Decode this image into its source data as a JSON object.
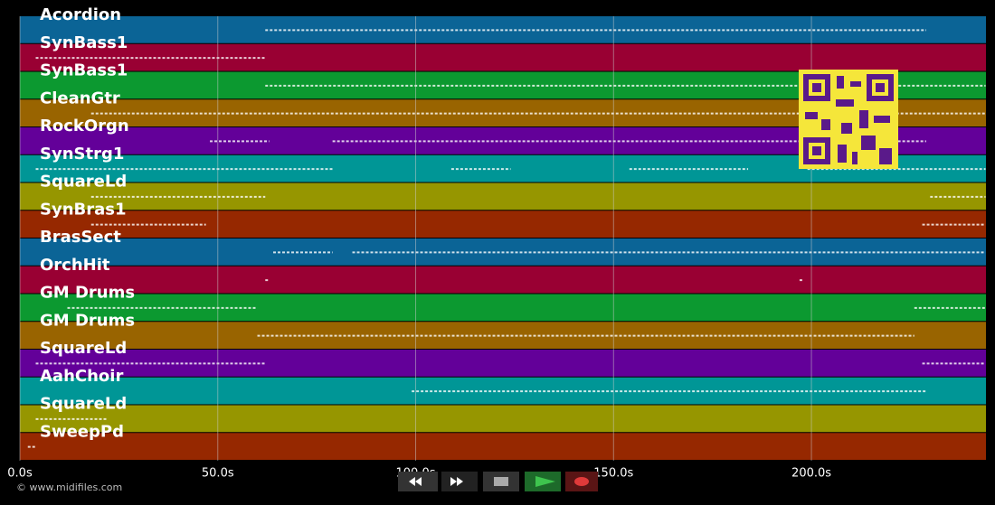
{
  "axis": {
    "xlim": [
      0,
      244.1
    ],
    "ticks": [
      {
        "value": 0,
        "label": "0.0s"
      },
      {
        "value": 50,
        "label": "50.0s"
      },
      {
        "value": 100,
        "label": "100.0s"
      },
      {
        "value": 150,
        "label": "150.0s"
      },
      {
        "value": 200,
        "label": "200.0s"
      }
    ]
  },
  "tracks": [
    {
      "name": "Acordion",
      "color": "#0b6496",
      "segments": [
        [
          62,
          229
        ]
      ]
    },
    {
      "name": "SynBass1",
      "color": "#990033",
      "segments": [
        [
          4,
          62
        ]
      ]
    },
    {
      "name": "SynBass1",
      "color": "#0c9930",
      "segments": [
        [
          62,
          244
        ]
      ]
    },
    {
      "name": "CleanGtr",
      "color": "#996400",
      "segments": [
        [
          18,
          244
        ]
      ]
    },
    {
      "name": "RockOrgn",
      "color": "#630099",
      "segments": [
        [
          48,
          63
        ],
        [
          79,
          229
        ]
      ]
    },
    {
      "name": "SynStrg1",
      "color": "#009696",
      "segments": [
        [
          4,
          79
        ],
        [
          109,
          124
        ],
        [
          154,
          184
        ],
        [
          199,
          244
        ]
      ]
    },
    {
      "name": "SquareLd",
      "color": "#969600",
      "segments": [
        [
          18,
          62
        ],
        [
          230,
          244
        ]
      ]
    },
    {
      "name": "SynBras1",
      "color": "#962800",
      "segments": [
        [
          18,
          47
        ],
        [
          228,
          244
        ]
      ]
    },
    {
      "name": "BrasSect",
      "color": "#0b6496",
      "segments": [
        [
          64,
          79
        ],
        [
          84,
          244
        ]
      ]
    },
    {
      "name": "OrchHit",
      "color": "#990033",
      "segments": [
        [
          62,
          63
        ],
        [
          197,
          198
        ]
      ]
    },
    {
      "name": "GM Drums",
      "color": "#0c9930",
      "segments": [
        [
          12,
          60
        ],
        [
          226,
          244
        ]
      ]
    },
    {
      "name": "GM Drums",
      "color": "#996400",
      "segments": [
        [
          60,
          226
        ]
      ]
    },
    {
      "name": "SquareLd",
      "color": "#630099",
      "segments": [
        [
          4,
          62
        ],
        [
          228,
          244
        ]
      ]
    },
    {
      "name": "AahChoir",
      "color": "#009696",
      "segments": [
        [
          99,
          229
        ]
      ]
    },
    {
      "name": "SquareLd",
      "color": "#969600",
      "segments": [
        [
          4,
          22
        ]
      ]
    },
    {
      "name": "SweepPd",
      "color": "#962800",
      "segments": [
        [
          2,
          4
        ]
      ]
    }
  ],
  "footer": "© www.midifiles.com"
}
